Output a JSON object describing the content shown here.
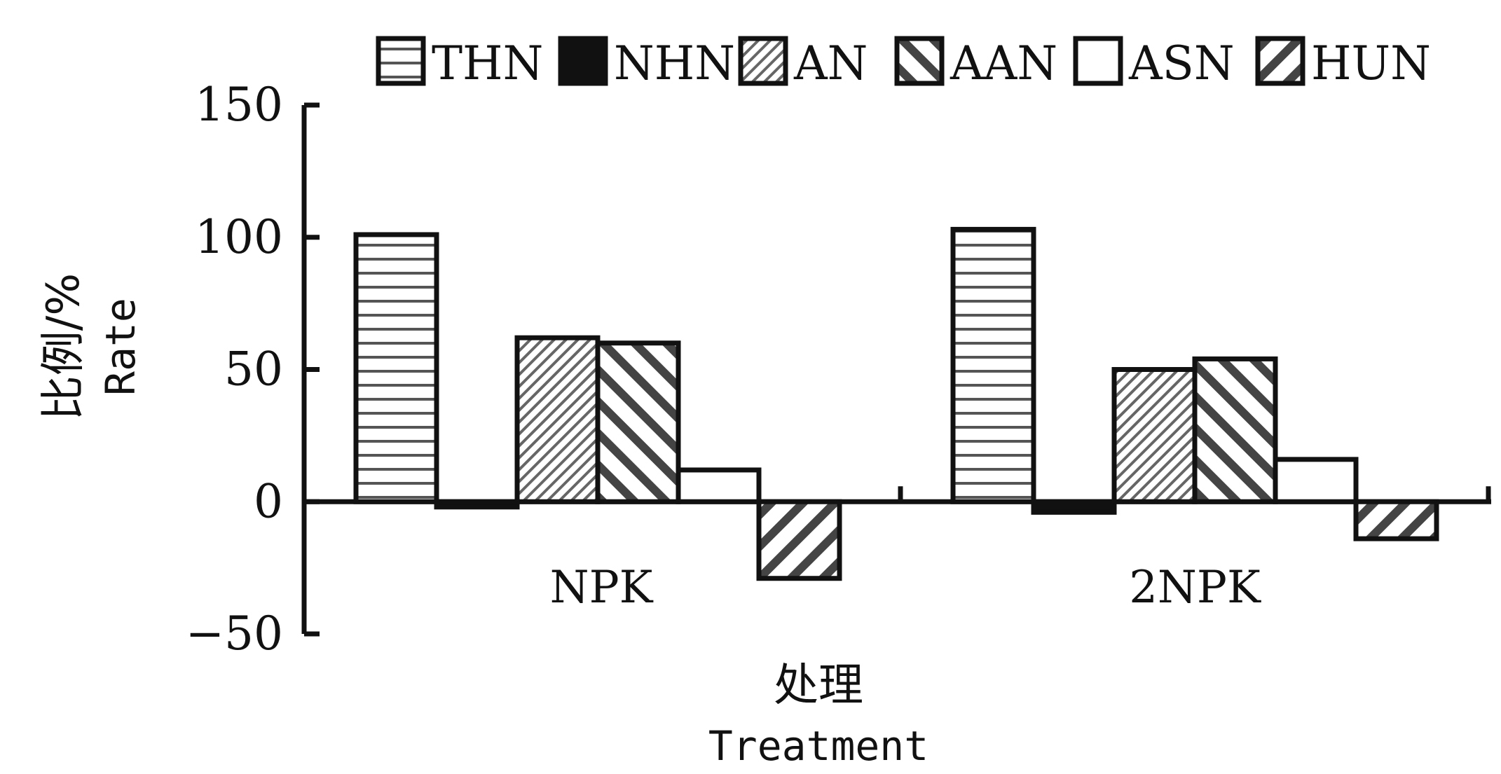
{
  "chart_data": {
    "type": "bar",
    "categories": [
      "NPK",
      "2NPK"
    ],
    "series": [
      {
        "name": "THN",
        "values": [
          101,
          103
        ],
        "pattern": "horizontal"
      },
      {
        "name": "NHN",
        "values": [
          -2,
          -4
        ],
        "pattern": "solid"
      },
      {
        "name": "AN",
        "values": [
          62,
          50
        ],
        "pattern": "fine-diagonal-up"
      },
      {
        "name": "AAN",
        "values": [
          60,
          54
        ],
        "pattern": "diagonal-down"
      },
      {
        "name": "ASN",
        "values": [
          12,
          16
        ],
        "pattern": "empty"
      },
      {
        "name": "HUN",
        "values": [
          -29,
          -14
        ],
        "pattern": "diagonal-up"
      }
    ],
    "ylim": [
      -50,
      150
    ],
    "yticks": [
      150,
      100,
      50,
      0,
      -50
    ],
    "ytick_labels": [
      "150",
      "100",
      "50",
      "0",
      "−50"
    ],
    "xlabel_cn": "处理",
    "xlabel_en": "Treatment",
    "ylabel_cn": "比例/%",
    "ylabel_en": "Rate",
    "legend_position": "top",
    "grid": false
  }
}
